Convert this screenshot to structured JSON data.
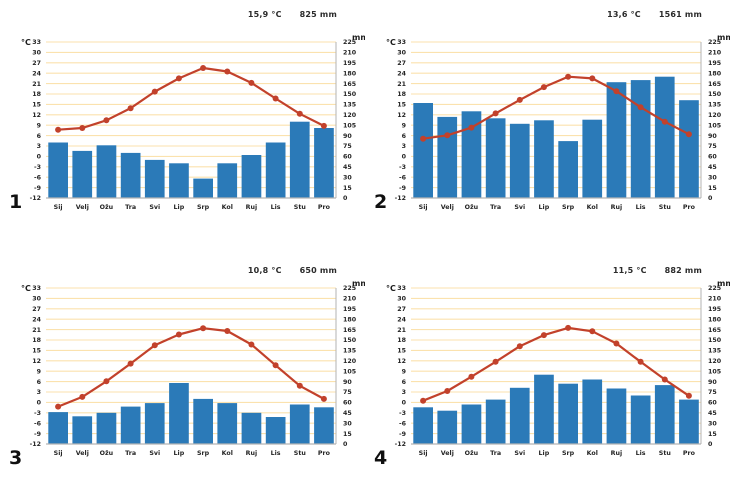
{
  "figure": {
    "type": "climate-diagrams",
    "axes": {
      "temp": {
        "unit_label": "°C",
        "min": -12,
        "max": 33,
        "step": 3
      },
      "precip": {
        "unit_label": "mm",
        "min": 0,
        "max": 225,
        "step": 15
      }
    },
    "colors": {
      "bar": "#2b7ab8",
      "line": "#c2412b",
      "grid": "#fbe2ae",
      "axis": "#b3b3b3",
      "text": "#242424"
    }
  },
  "chart_data": [
    {
      "type": "bar",
      "subtype": "climograph-bar-line",
      "label": "1",
      "mean_temp_label": "15,9 °C",
      "total_precip_label": "825 mm",
      "categories": [
        "Sij",
        "Velj",
        "Ožu",
        "Tra",
        "Svi",
        "Lip",
        "Srp",
        "Kol",
        "Ruj",
        "Lis",
        "Stu",
        "Pro"
      ],
      "series": [
        {
          "name": "temperature_c",
          "type": "line",
          "values": [
            7.7,
            8.2,
            10.4,
            13.9,
            18.7,
            22.5,
            25.5,
            24.5,
            21.2,
            16.7,
            12.3,
            8.8
          ]
        },
        {
          "name": "precipitation_mm",
          "type": "bar",
          "values": [
            80,
            68,
            76,
            65,
            55,
            50,
            28,
            50,
            62,
            80,
            110,
            101
          ]
        }
      ],
      "ylim_temp": [
        -12,
        33
      ],
      "ylim_precip": [
        0,
        225
      ]
    },
    {
      "type": "bar",
      "subtype": "climograph-bar-line",
      "label": "2",
      "mean_temp_label": "13,6 °C",
      "total_precip_label": "1561 mm",
      "categories": [
        "Sij",
        "Velj",
        "Ožu",
        "Tra",
        "Svi",
        "Lip",
        "Srp",
        "Kol",
        "Ruj",
        "Lis",
        "Stu",
        "Pro"
      ],
      "series": [
        {
          "name": "temperature_c",
          "type": "line",
          "values": [
            5.1,
            6.1,
            8.3,
            12.4,
            16.3,
            20.0,
            23.0,
            22.5,
            18.8,
            14.2,
            10.0,
            6.4
          ]
        },
        {
          "name": "precipitation_mm",
          "type": "bar",
          "values": [
            137,
            117,
            125,
            115,
            107,
            112,
            82,
            113,
            167,
            170,
            175,
            141
          ]
        }
      ],
      "ylim_temp": [
        -12,
        33
      ],
      "ylim_precip": [
        0,
        225
      ]
    },
    {
      "type": "bar",
      "subtype": "climograph-bar-line",
      "label": "3",
      "mean_temp_label": "10,8 °C",
      "total_precip_label": "650 mm",
      "categories": [
        "Sij",
        "Velj",
        "Ožu",
        "Tra",
        "Svi",
        "Lip",
        "Srp",
        "Kol",
        "Ruj",
        "Lis",
        "Stu",
        "Pro"
      ],
      "series": [
        {
          "name": "temperature_c",
          "type": "line",
          "values": [
            -1.2,
            1.6,
            6.1,
            11.2,
            16.5,
            19.6,
            21.4,
            20.6,
            16.7,
            10.7,
            4.8,
            1.0
          ]
        },
        {
          "name": "precipitation_mm",
          "type": "bar",
          "values": [
            46,
            40,
            45,
            54,
            59,
            88,
            65,
            59,
            45,
            39,
            57,
            53
          ]
        }
      ],
      "ylim_temp": [
        -12,
        33
      ],
      "ylim_precip": [
        0,
        225
      ]
    },
    {
      "type": "bar",
      "subtype": "climograph-bar-line",
      "label": "4",
      "mean_temp_label": "11,5 °C",
      "total_precip_label": "882 mm",
      "categories": [
        "Sij",
        "Velj",
        "Ožu",
        "Tra",
        "Svi",
        "Lip",
        "Srp",
        "Kol",
        "Ruj",
        "Lis",
        "Stu",
        "Pro"
      ],
      "series": [
        {
          "name": "temperature_c",
          "type": "line",
          "values": [
            0.5,
            3.3,
            7.4,
            11.7,
            16.2,
            19.4,
            21.5,
            20.5,
            17.0,
            11.7,
            6.6,
            1.9
          ]
        },
        {
          "name": "precipitation_mm",
          "type": "bar",
          "values": [
            53,
            48,
            57,
            64,
            81,
            100,
            87,
            93,
            80,
            70,
            85,
            64
          ]
        }
      ],
      "ylim_temp": [
        -12,
        33
      ],
      "ylim_precip": [
        0,
        225
      ]
    }
  ]
}
